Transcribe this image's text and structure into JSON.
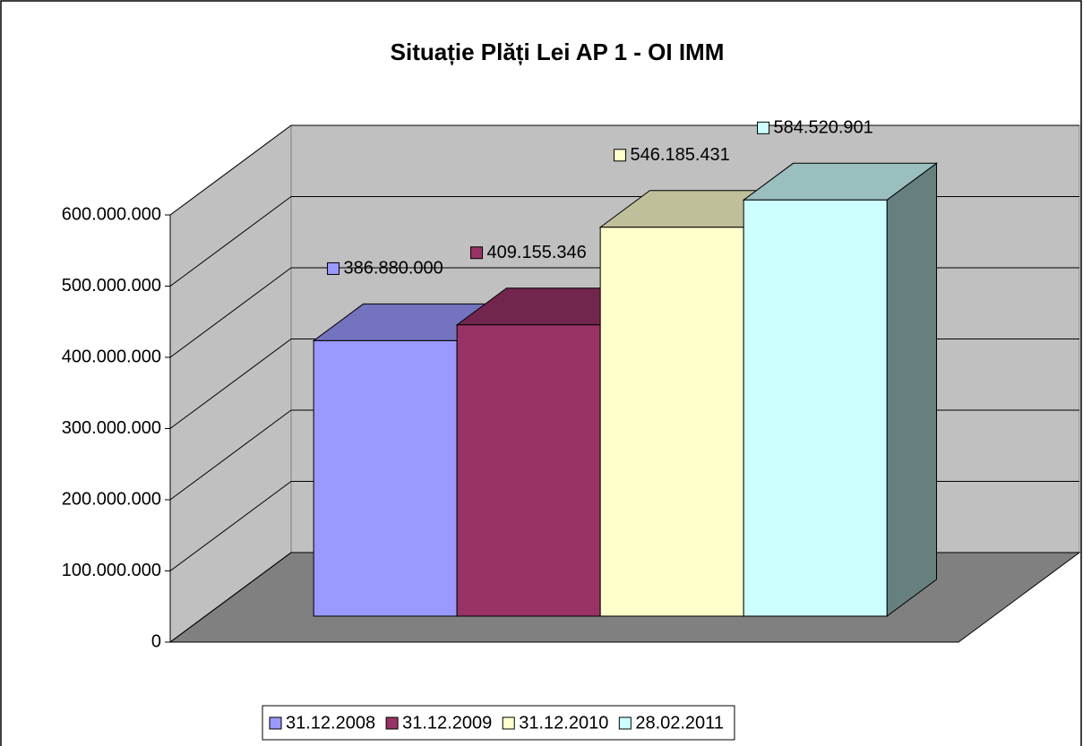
{
  "chart_data": {
    "type": "bar3d",
    "title": "Situație Plăți Lei AP 1 - OI IMM",
    "series": [
      {
        "name": "31.12.2008",
        "color": "#9999ff",
        "values": [
          386880000
        ],
        "value_labels": [
          "386.880.000"
        ]
      },
      {
        "name": "31.12.2009",
        "color": "#993366",
        "values": [
          409155346
        ],
        "value_labels": [
          "409.155.346"
        ]
      },
      {
        "name": "31.12.2010",
        "color": "#ffffcc",
        "values": [
          546185431
        ],
        "value_labels": [
          "546.185.431"
        ]
      },
      {
        "name": "28.02.2011",
        "color": "#ccffff",
        "values": [
          584520901
        ],
        "value_labels": [
          "584.520.901"
        ]
      }
    ],
    "ylim": [
      0,
      600000000
    ],
    "yticks": [
      0,
      {
        "value": 100000000,
        "label": "100.000.000"
      },
      {
        "value": 200000000,
        "label": "200.000.000"
      },
      {
        "value": 300000000,
        "label": "300.000.000"
      },
      {
        "value": 400000000,
        "label": "400.000.000"
      },
      {
        "value": 500000000,
        "label": "500.000.000"
      },
      {
        "value": 600000000,
        "label": "600.000.000"
      }
    ],
    "grid": true,
    "legend": "bottom"
  }
}
